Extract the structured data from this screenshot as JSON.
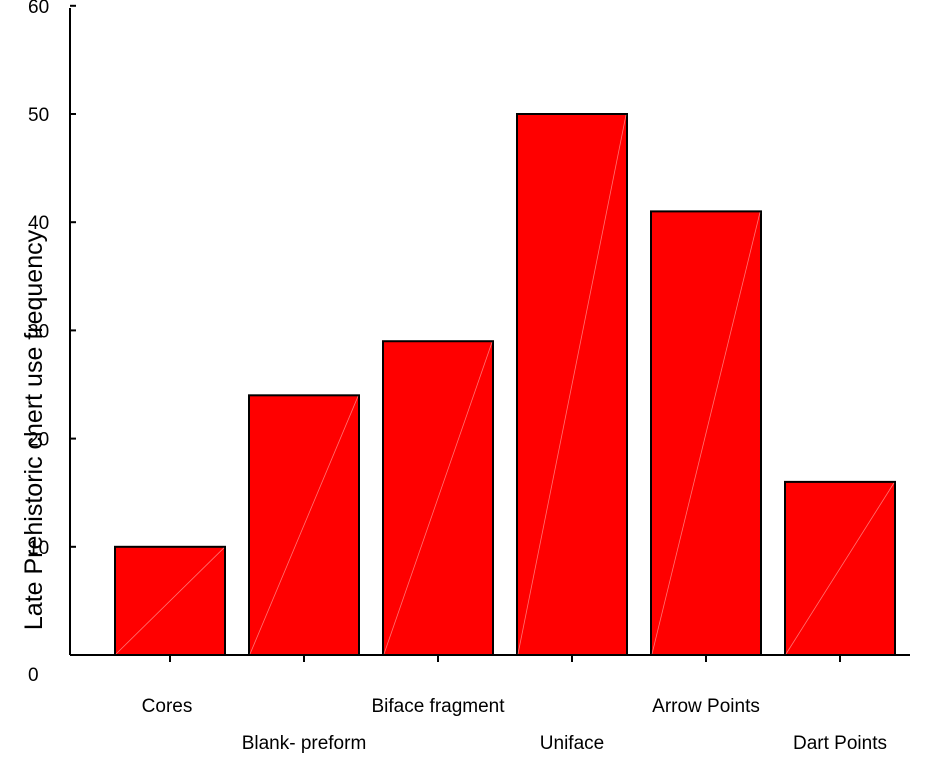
{
  "chart_data": {
    "type": "bar",
    "title": "",
    "xlabel": "",
    "ylabel": "Late Prehistoric chert use frequency",
    "categories": [
      "Cores",
      "Blank- preform",
      "Biface fragment",
      "Uniface",
      "Arrow Points",
      "Dart Points"
    ],
    "values": [
      10,
      24,
      29,
      50,
      41,
      16
    ],
    "ylim": [
      0,
      60
    ],
    "yticks": [
      0,
      10,
      20,
      30,
      40,
      50,
      60
    ],
    "grid": false,
    "legend": "none",
    "bar_color": "#ff0000"
  }
}
